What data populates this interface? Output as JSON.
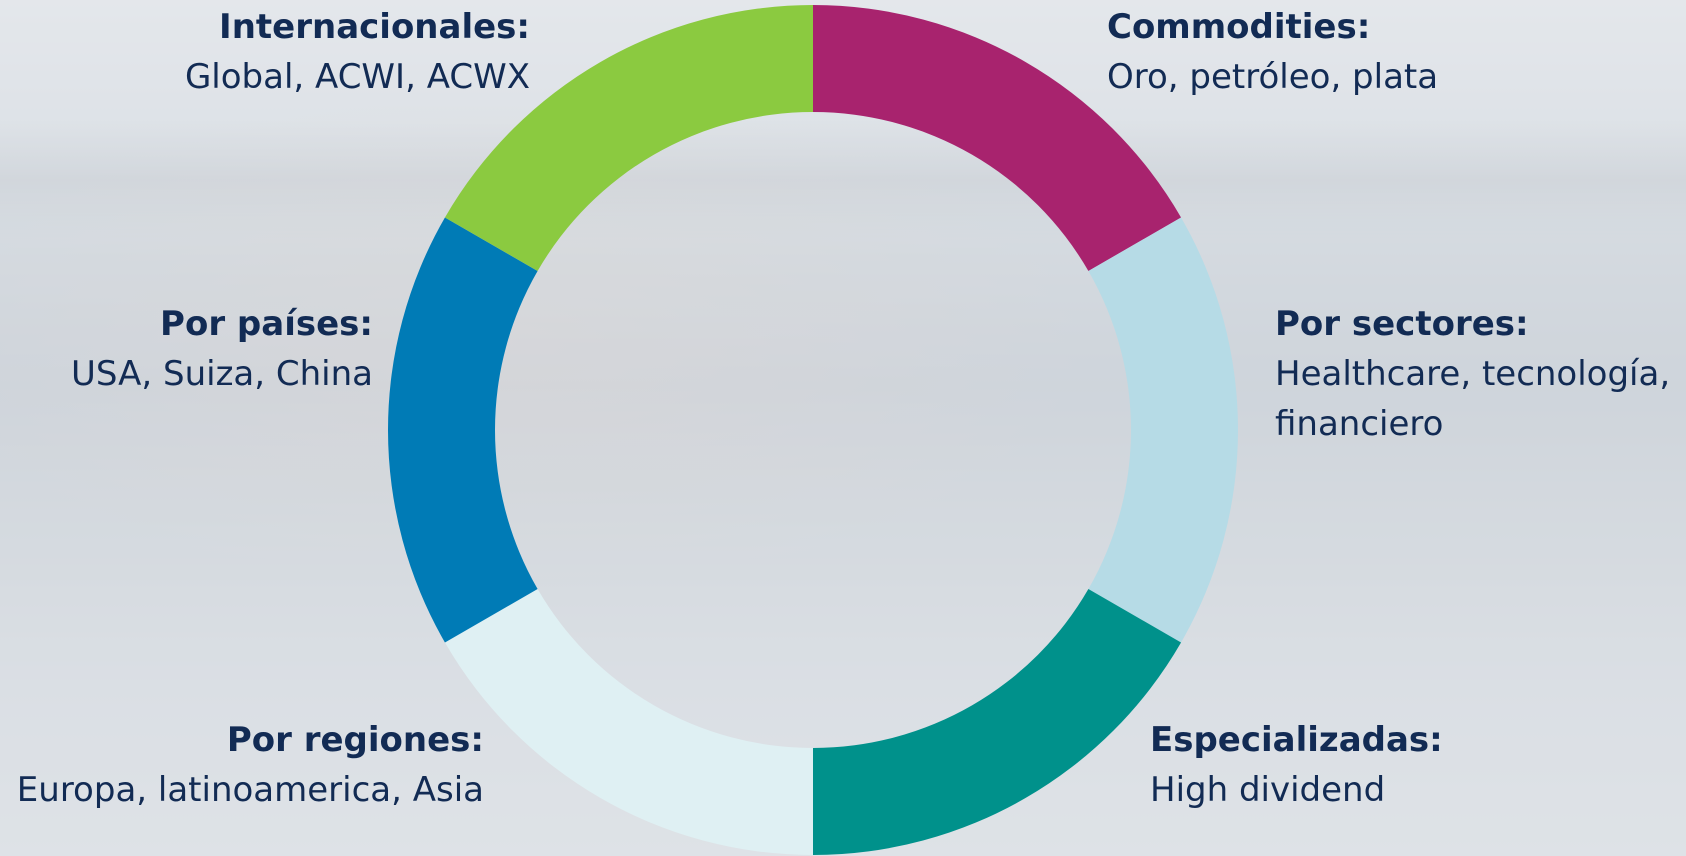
{
  "chart_data": {
    "type": "donut",
    "segments": [
      {
        "title": "Commodities:",
        "detail": "Oro, petróleo, plata",
        "color": "#a8236e",
        "value": 1
      },
      {
        "title": "Por sectores:",
        "detail": "Healthcare, tecnología, financiero",
        "color": "#b6dbe6",
        "value": 1
      },
      {
        "title": "Especializadas:",
        "detail": "High dividend",
        "color": "#00918b",
        "value": 1
      },
      {
        "title": "Por regiones:",
        "detail": "Europa, latinoamerica, Asia",
        "color": "#dff0f3",
        "value": 1
      },
      {
        "title": "Por países:",
        "detail": "USA, Suiza, China",
        "color": "#007bb6",
        "value": 1
      },
      {
        "title": "Internacionales:",
        "detail": "Global, ACWI, ACWX",
        "color": "#8bca40",
        "value": 1
      }
    ]
  },
  "labels": {
    "internacionales": {
      "title": "Internacionales:",
      "detail": "Global, ACWI, ACWX"
    },
    "commodities": {
      "title": "Commodities:",
      "detail": "Oro, petróleo, plata"
    },
    "paises": {
      "title": "Por países:",
      "detail": "USA, Suiza, China"
    },
    "sectores": {
      "title": "Por sectores:",
      "detail_line1": "Healthcare, tecnología,",
      "detail_line2": "financiero"
    },
    "regiones": {
      "title": "Por regiones:",
      "detail": "Europa, latinoamerica, Asia"
    },
    "especializadas": {
      "title": "Especializadas:",
      "detail": "High dividend"
    }
  }
}
